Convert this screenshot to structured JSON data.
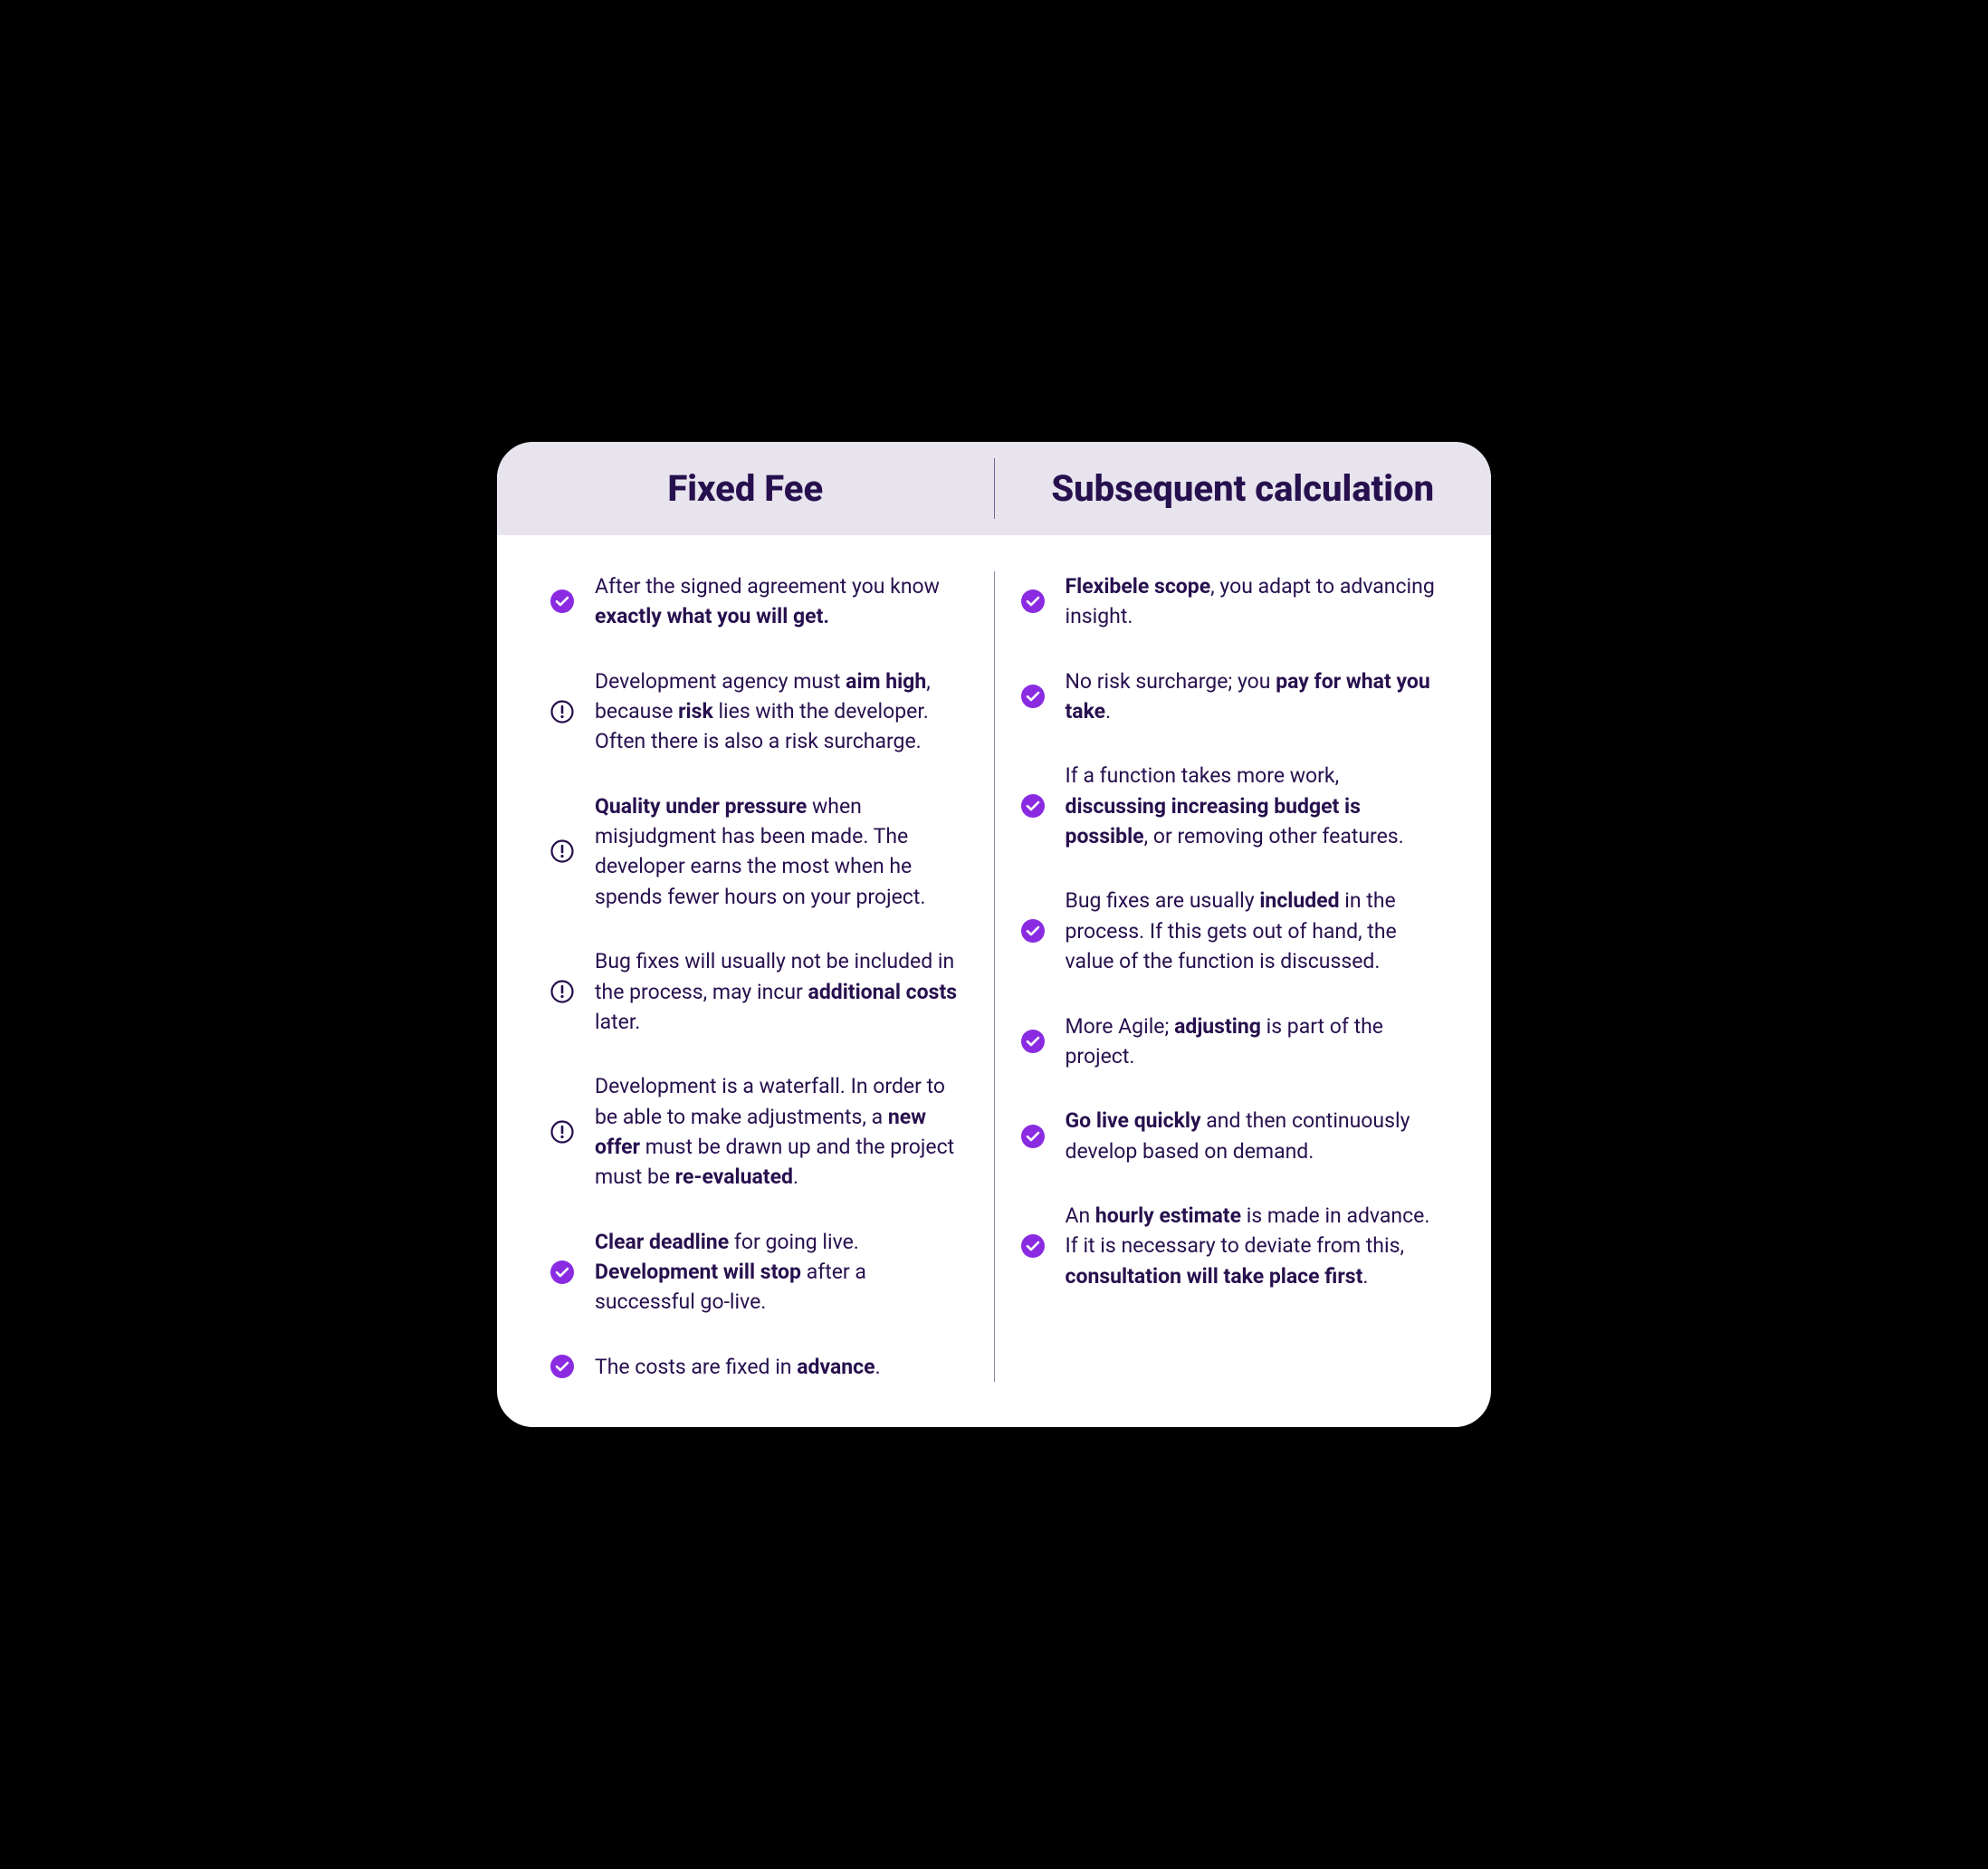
{
  "colors": {
    "card_bg": "#ffffff",
    "header_bg": "#e7e4ee",
    "text": "#27104e",
    "check_icon": "#8a2be2",
    "alert_icon": "#27104e",
    "divider": "#27104e"
  },
  "header": {
    "left": "Fixed Fee",
    "right": "Subsequent calculation"
  },
  "left_items": [
    {
      "icon": "check",
      "html": "After the signed agreement you know <b>exactly what you will get.</b>"
    },
    {
      "icon": "alert",
      "html": "Development agency must <b>aim high</b>, because <b>risk</b> lies with the developer. Often there is also a risk surcharge."
    },
    {
      "icon": "alert",
      "html": "<b>Quality under pressure</b> when misjudgment has been made. The developer earns the most when he spends fewer hours on your project."
    },
    {
      "icon": "alert",
      "html": "Bug fixes will usually not be included in the process, may incur <b>additional costs</b> later."
    },
    {
      "icon": "alert",
      "html": "Development is a waterfall. In order to be able to make adjustments, a <b>new offer</b> must be drawn up and the project must be <b>re-evaluated</b>."
    },
    {
      "icon": "check",
      "html": "<b>Clear deadline</b> for going live. <b>Development will stop</b> after a successful go-live."
    },
    {
      "icon": "check",
      "html": "The costs are fixed in <b>advance</b>."
    }
  ],
  "right_items": [
    {
      "icon": "check",
      "html": "<b>Flexibele scope</b>, you adapt to advancing insight."
    },
    {
      "icon": "check",
      "html": "No risk surcharge; you <b>pay for what you take</b>."
    },
    {
      "icon": "check",
      "html": "If a function takes more work, <b>discussing increasing budget is possible</b>, or removing other features."
    },
    {
      "icon": "check",
      "html": "Bug fixes are usually <b>included</b> in the process. If this gets out of hand, the value of the function is discussed."
    },
    {
      "icon": "check",
      "html": "More Agile; <b>adjusting</b> is part of the project."
    },
    {
      "icon": "check",
      "html": "<b>Go live quickly</b> and then continuously develop based on demand."
    },
    {
      "icon": "check",
      "html": "An <b>hourly estimate</b> is made in advance. If it is necessary to deviate from this, <b>consultation will take place first</b>."
    }
  ]
}
